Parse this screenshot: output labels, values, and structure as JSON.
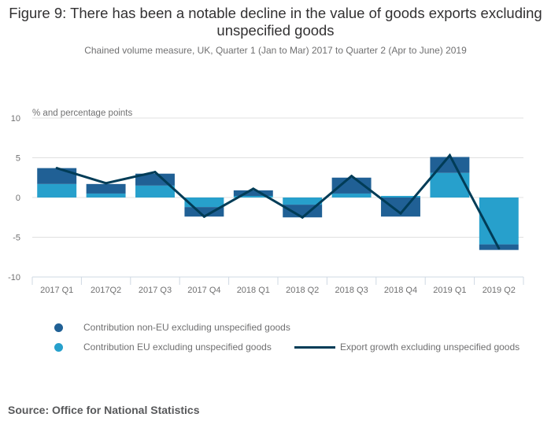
{
  "chart_data": {
    "type": "bar",
    "stacked": true,
    "title": "Figure 9: There has been a notable decline in the value of goods exports excluding unspecified goods",
    "subtitle": "Chained volume measure, UK, Quarter 1 (Jan to Mar) 2017 to Quarter 2 (Apr to June) 2019",
    "xlabel": "",
    "ylabel": "% and percentage points",
    "ylim": [
      -10,
      10
    ],
    "yticks": [
      10,
      5,
      0,
      -5,
      -10
    ],
    "grid": true,
    "legend_position": "bottom",
    "categories": [
      "2017 Q1",
      "2017Q2",
      "2017 Q3",
      "2017 Q4",
      "2018 Q1",
      "2018 Q2",
      "2018 Q3",
      "2018 Q4",
      "2019 Q1",
      "2019 Q2"
    ],
    "series": [
      {
        "name": "Contribution EU excluding unspecified goods",
        "type": "bar",
        "color": "#27a0cc",
        "values": [
          1.7,
          0.5,
          1.5,
          -1.2,
          0.2,
          -0.9,
          0.5,
          0.2,
          3.1,
          -5.9
        ]
      },
      {
        "name": "Contribution non-EU excluding unspecified goods",
        "type": "bar",
        "color": "#206095",
        "values": [
          2.0,
          1.2,
          1.5,
          -1.2,
          0.7,
          -1.6,
          2.0,
          -2.4,
          2.0,
          -0.7
        ]
      },
      {
        "name": "Export growth excluding unspecified goods",
        "type": "line",
        "color": "#003c57",
        "values": [
          3.7,
          1.8,
          3.2,
          -2.4,
          1.1,
          -2.5,
          2.7,
          -2.0,
          5.3,
          -6.4
        ]
      }
    ]
  },
  "header": {
    "title": "Figure 9: There has been a notable decline in the value of goods exports excluding unspecified goods",
    "subtitle": "Chained volume measure, UK, Quarter 1 (Jan to Mar) 2017 to Quarter 2 (Apr to June) 2019"
  },
  "legend": {
    "non_eu": "Contribution non-EU excluding unspecified goods",
    "eu": "Contribution EU excluding unspecified goods",
    "line": "Export growth excluding unspecified goods"
  },
  "source": "Source: Office for National Statistics"
}
